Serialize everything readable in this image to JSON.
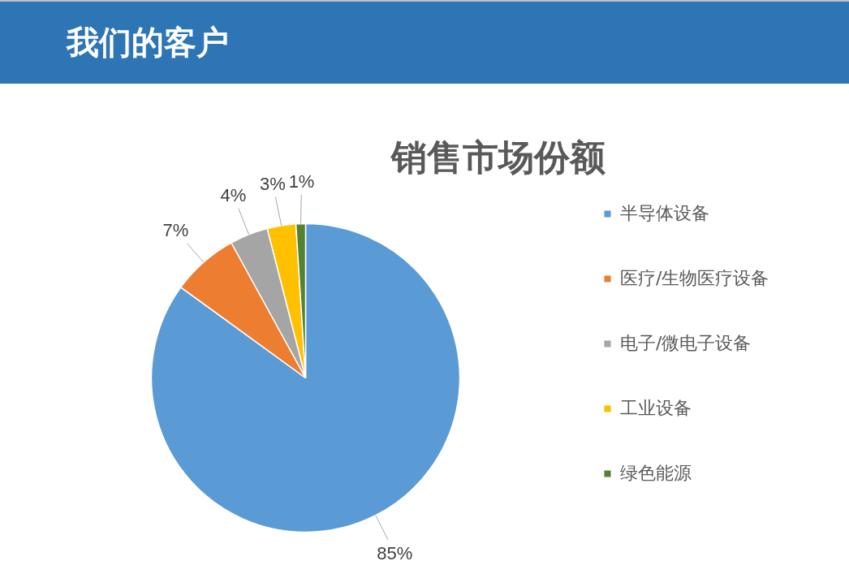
{
  "chart_data": {
    "type": "pie",
    "title": "销售市场份额",
    "annotations": [
      "我们的客户"
    ],
    "categories": [
      "半导体设备",
      "医疗/生物医疗设备",
      "电子/微电子设备",
      "工业设备",
      "绿色能源"
    ],
    "values": [
      85,
      7,
      4,
      3,
      1
    ],
    "colors": [
      "#5b9bd5",
      "#ed7d31",
      "#a5a5a5",
      "#ffc000",
      "#548235"
    ],
    "value_labels": [
      "85%",
      "7%",
      "4%",
      "3%",
      "1%"
    ],
    "legend": "right"
  }
}
